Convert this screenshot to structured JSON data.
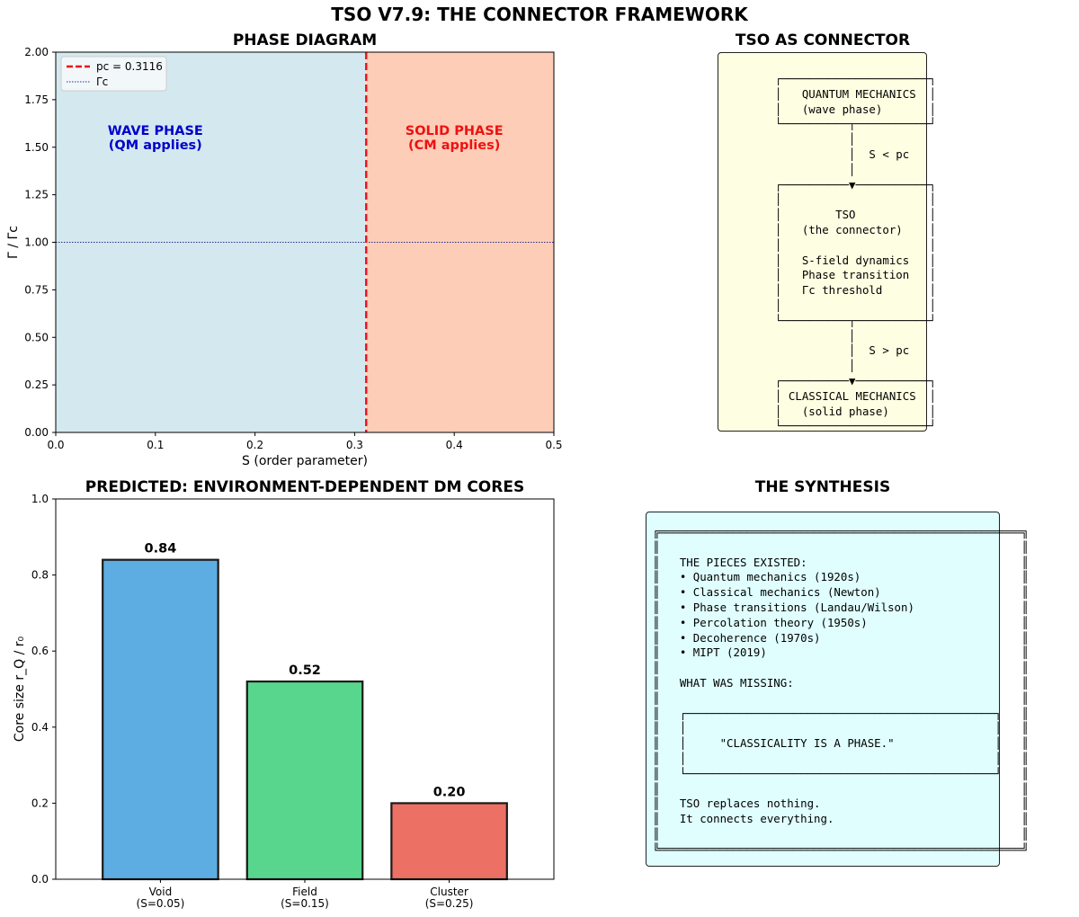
{
  "title": "TSO V7.9: THE CONNECTOR FRAMEWORK",
  "colors": {
    "wave_region": "#d4e9ef",
    "solid_region": "#fdcdb8",
    "critical_line": "#e8121b",
    "gamma_line": "#2c2c8c",
    "wave_text": "#0000cc",
    "solid_text": "#ee1111",
    "connector_box": "#fefee2",
    "synthesis_box": "#e0fefe"
  },
  "chart_data": [
    {
      "type": "area",
      "title": "PHASE DIAGRAM",
      "xlabel": "S (order parameter)",
      "ylabel": "Γ / Γc",
      "xlim": [
        0,
        0.5
      ],
      "ylim": [
        0,
        2
      ],
      "xticks": [
        "0.0",
        "0.1",
        "0.2",
        "0.3",
        "0.4",
        "0.5"
      ],
      "yticks": [
        "0.00",
        "0.25",
        "0.50",
        "0.75",
        "1.00",
        "1.25",
        "1.50",
        "1.75",
        "2.00"
      ],
      "regions": [
        {
          "x_from": 0,
          "x_to": 0.3116,
          "label_line1": "WAVE PHASE",
          "label_line2": "(QM applies)",
          "color": "#d4e9ef",
          "text_color": "#0000cc"
        },
        {
          "x_from": 0.3116,
          "x_to": 0.5,
          "label_line1": "SOLID PHASE",
          "label_line2": "(CM applies)",
          "color": "#fdcdb8",
          "text_color": "#ee1111"
        }
      ],
      "vline": {
        "x": 0.3116,
        "label": "pc = 0.3116",
        "style": "dashed",
        "color": "#e8121b"
      },
      "hline": {
        "y": 1.0,
        "label": "Γc",
        "style": "dotted",
        "color": "#2c2c8c"
      },
      "legend": "top-left",
      "grid": false
    },
    {
      "type": "bar",
      "title": "PREDICTED: ENVIRONMENT-DEPENDENT DM CORES",
      "xlabel": "",
      "ylabel": "Core size r_Q / r₀",
      "ylim": [
        0,
        1.0
      ],
      "yticks": [
        "0.0",
        "0.2",
        "0.4",
        "0.6",
        "0.8",
        "1.0"
      ],
      "categories": [
        "Void\n(S=0.05)",
        "Field\n(S=0.15)",
        "Cluster\n(S=0.25)"
      ],
      "values": [
        0.84,
        0.52,
        0.2
      ],
      "value_labels": [
        "0.84",
        "0.52",
        "0.20"
      ],
      "bar_colors": [
        "#5dade2",
        "#58d68d",
        "#ec7063"
      ],
      "grid": false
    }
  ],
  "connector": {
    "title": "TSO AS CONNECTOR",
    "lines": [
      "┌──────────────────────┐",
      "│   QUANTUM MECHANICS  │",
      "│   (wave phase)       │",
      "└──────────┬───────────┘",
      "           │",
      "           │  S < pc",
      "           │",
      "┌──────────▼───────────┐",
      "│                      │",
      "│        TSO           │",
      "│   (the connector)    │",
      "│                      │",
      "│   S-field dynamics   │",
      "│   Phase transition   │",
      "│   Γc threshold       │",
      "│                      │",
      "└──────────┬───────────┘",
      "           │",
      "           │  S > pc",
      "           │",
      "┌──────────▼───────────┐",
      "│ CLASSICAL MECHANICS  │",
      "│   (solid phase)      │",
      "└──────────────────────┘"
    ]
  },
  "synthesis": {
    "title": "THE SYNTHESIS",
    "lines": [
      "╔══════════════════════════════════════════════════════╗",
      "║                                                      ║",
      "║   THE PIECES EXISTED:                                ║",
      "║   • Quantum mechanics (1920s)                        ║",
      "║   • Classical mechanics (Newton)                     ║",
      "║   • Phase transitions (Landau/Wilson)                ║",
      "║   • Percolation theory (1950s)                       ║",
      "║   • Decoherence (1970s)                              ║",
      "║   • MIPT (2019)                                      ║",
      "║                                                      ║",
      "║   WHAT WAS MISSING:                                  ║",
      "║                                                      ║",
      "║   ┌──────────────────────────────────────────────┐   ║",
      "║   │                                              │   ║",
      "║   │     \"CLASSICALITY IS A PHASE.\"               │   ║",
      "║   │                                              │   ║",
      "║   └──────────────────────────────────────────────┘   ║",
      "║                                                      ║",
      "║   TSO replaces nothing.                              ║",
      "║   It connects everything.                            ║",
      "║                                                      ║",
      "╚══════════════════════════════════════════════════════╝"
    ]
  }
}
